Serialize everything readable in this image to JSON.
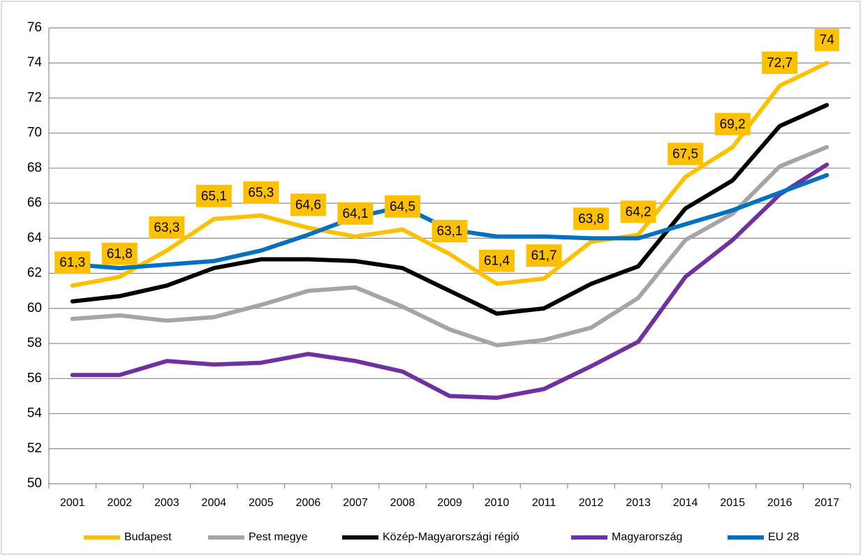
{
  "chart_data": {
    "type": "line",
    "categories": [
      "2001",
      "2002",
      "2003",
      "2004",
      "2005",
      "2006",
      "2007",
      "2008",
      "2009",
      "2010",
      "2011",
      "2012",
      "2013",
      "2014",
      "2015",
      "2016",
      "2017"
    ],
    "ylim": [
      50,
      76
    ],
    "yticks": [
      50,
      52,
      54,
      56,
      58,
      60,
      62,
      64,
      66,
      68,
      70,
      72,
      74,
      76
    ],
    "grid": true,
    "legend": "bottom",
    "series": [
      {
        "name": "Budapest",
        "color": "#ffc000",
        "values": [
          61.3,
          61.8,
          63.3,
          65.1,
          65.3,
          64.6,
          64.1,
          64.5,
          63.1,
          61.4,
          61.7,
          63.8,
          64.2,
          67.5,
          69.2,
          72.7,
          74
        ],
        "value_labels": [
          "61,3",
          "61,8",
          "63,3",
          "65,1",
          "65,3",
          "64,6",
          "64,1",
          "64,5",
          "63,1",
          "61,4",
          "61,7",
          "63,8",
          "64,2",
          "67,5",
          "69,2",
          "72,7",
          "74"
        ]
      },
      {
        "name": "Pest megye",
        "color": "#a5a5a5",
        "values": [
          59.4,
          59.6,
          59.3,
          59.5,
          60.2,
          61.0,
          61.2,
          60.1,
          58.8,
          57.9,
          58.2,
          58.9,
          60.6,
          63.9,
          65.4,
          68.1,
          69.2
        ]
      },
      {
        "name": "Közép-Magyarországi régió",
        "color": "#000000",
        "values": [
          60.4,
          60.7,
          61.3,
          62.3,
          62.8,
          62.8,
          62.7,
          62.3,
          61.0,
          59.7,
          60.0,
          61.4,
          62.4,
          65.7,
          67.3,
          70.4,
          71.6
        ]
      },
      {
        "name": "Magyarország",
        "color": "#7030a0",
        "values": [
          56.2,
          56.2,
          57.0,
          56.8,
          56.9,
          57.4,
          57.0,
          56.4,
          55.0,
          54.9,
          55.4,
          56.7,
          58.1,
          61.8,
          63.9,
          66.5,
          68.2
        ]
      },
      {
        "name": "EU 28",
        "color": "#0070c0",
        "values": [
          62.5,
          62.3,
          62.5,
          62.7,
          63.3,
          64.2,
          65.2,
          65.8,
          64.5,
          64.1,
          64.1,
          64.0,
          64.0,
          64.8,
          65.6,
          66.6,
          67.6
        ]
      }
    ]
  }
}
